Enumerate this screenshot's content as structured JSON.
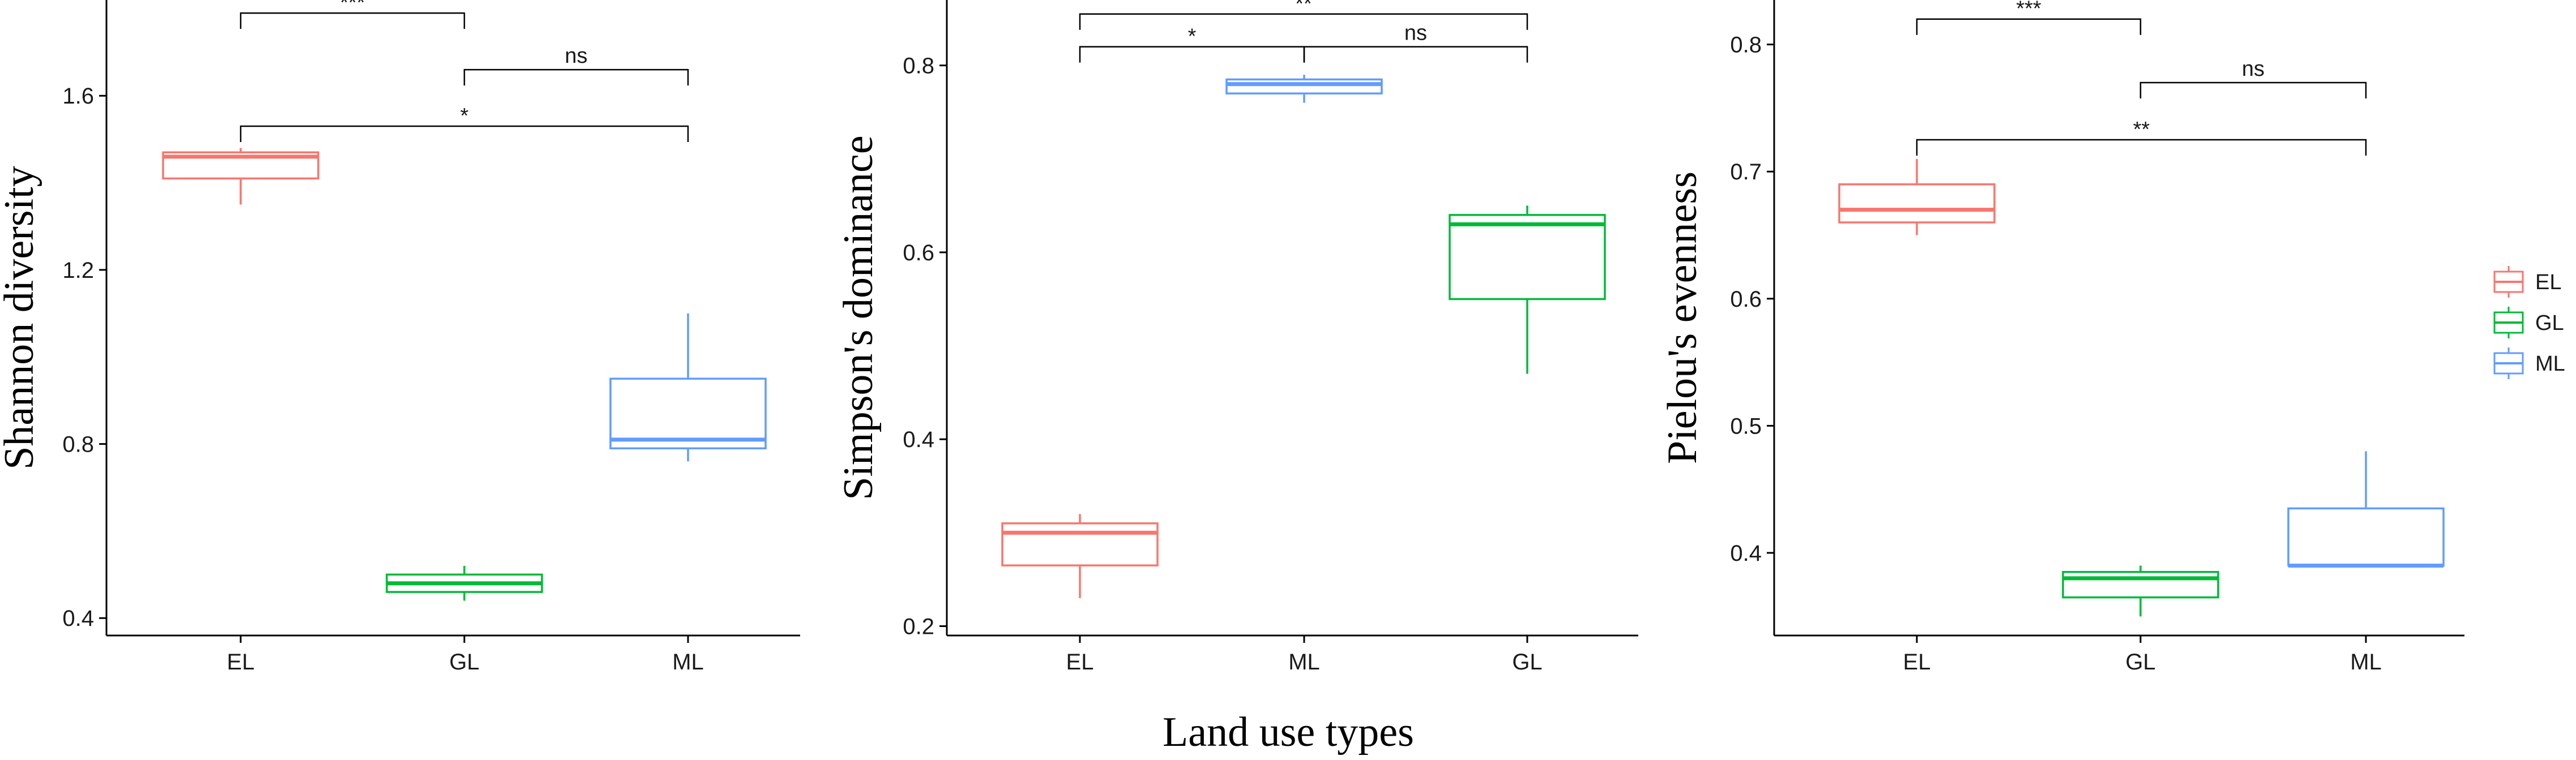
{
  "colors": {
    "EL": "#F8766D",
    "GL": "#00BA38",
    "ML": "#619CFF"
  },
  "x_axis_title": "Land use types",
  "legend": {
    "entries": [
      "EL",
      "GL",
      "ML"
    ],
    "placement": "right"
  },
  "chart_data": [
    {
      "type": "box",
      "ylabel": "Shannon diversity",
      "ylim": [
        0.36,
        1.82
      ],
      "yticks": [
        0.4,
        0.8,
        1.2,
        1.6
      ],
      "ytick_labels": [
        "0.4",
        "0.8",
        "1.2",
        "1.6"
      ],
      "categories": [
        "EL",
        "GL",
        "ML"
      ],
      "boxes": [
        {
          "group": "EL",
          "min": 1.35,
          "q1": 1.41,
          "median": 1.46,
          "q3": 1.47,
          "max": 1.48
        },
        {
          "group": "GL",
          "min": 0.44,
          "q1": 0.46,
          "median": 0.48,
          "q3": 0.5,
          "max": 0.52
        },
        {
          "group": "ML",
          "min": 0.76,
          "q1": 0.79,
          "median": 0.81,
          "q3": 0.95,
          "max": 1.1
        }
      ],
      "significance": [
        {
          "from": "EL",
          "to": "GL",
          "label": "***",
          "y": 1.79
        },
        {
          "from": "GL",
          "to": "ML",
          "label": "ns",
          "y": 1.66
        },
        {
          "from": "EL",
          "to": "ML",
          "label": "*",
          "y": 1.53
        }
      ]
    },
    {
      "type": "box",
      "ylabel": "Simpson's dominance",
      "ylim": [
        0.19,
        0.87
      ],
      "yticks": [
        0.2,
        0.4,
        0.6,
        0.8
      ],
      "ytick_labels": [
        "0.2",
        "0.4",
        "0.6",
        "0.8"
      ],
      "categories": [
        "EL",
        "ML",
        "GL"
      ],
      "boxes": [
        {
          "group": "EL",
          "min": 0.23,
          "q1": 0.265,
          "median": 0.3,
          "q3": 0.31,
          "max": 0.32
        },
        {
          "group": "GL",
          "min": 0.47,
          "q1": 0.55,
          "median": 0.63,
          "q3": 0.64,
          "max": 0.65
        },
        {
          "group": "ML",
          "min": 0.76,
          "q1": 0.77,
          "median": 0.78,
          "q3": 0.785,
          "max": 0.79
        }
      ],
      "significance": [
        {
          "from": "EL",
          "to": "GL",
          "label": "**",
          "y": 0.855
        },
        {
          "from": "EL",
          "to": "ML",
          "label": "*",
          "y": 0.82
        },
        {
          "from": "ML",
          "to": "GL",
          "label": "ns",
          "y": 0.82
        }
      ]
    },
    {
      "type": "box",
      "ylabel": "Pielou's evenness",
      "ylim": [
        0.335,
        0.835
      ],
      "yticks": [
        0.4,
        0.5,
        0.6,
        0.7,
        0.8
      ],
      "ytick_labels": [
        "0.4",
        "0.5",
        "0.6",
        "0.7",
        "0.8"
      ],
      "categories": [
        "EL",
        "GL",
        "ML"
      ],
      "boxes": [
        {
          "group": "EL",
          "min": 0.65,
          "q1": 0.66,
          "median": 0.67,
          "q3": 0.69,
          "max": 0.71
        },
        {
          "group": "GL",
          "min": 0.35,
          "q1": 0.365,
          "median": 0.38,
          "q3": 0.385,
          "max": 0.39
        },
        {
          "group": "ML",
          "min": 0.39,
          "q1": 0.39,
          "median": 0.39,
          "q3": 0.435,
          "max": 0.48
        }
      ],
      "significance": [
        {
          "from": "EL",
          "to": "GL",
          "label": "***",
          "y": 0.82
        },
        {
          "from": "GL",
          "to": "ML",
          "label": "ns",
          "y": 0.77
        },
        {
          "from": "EL",
          "to": "ML",
          "label": "**",
          "y": 0.725
        }
      ]
    }
  ]
}
